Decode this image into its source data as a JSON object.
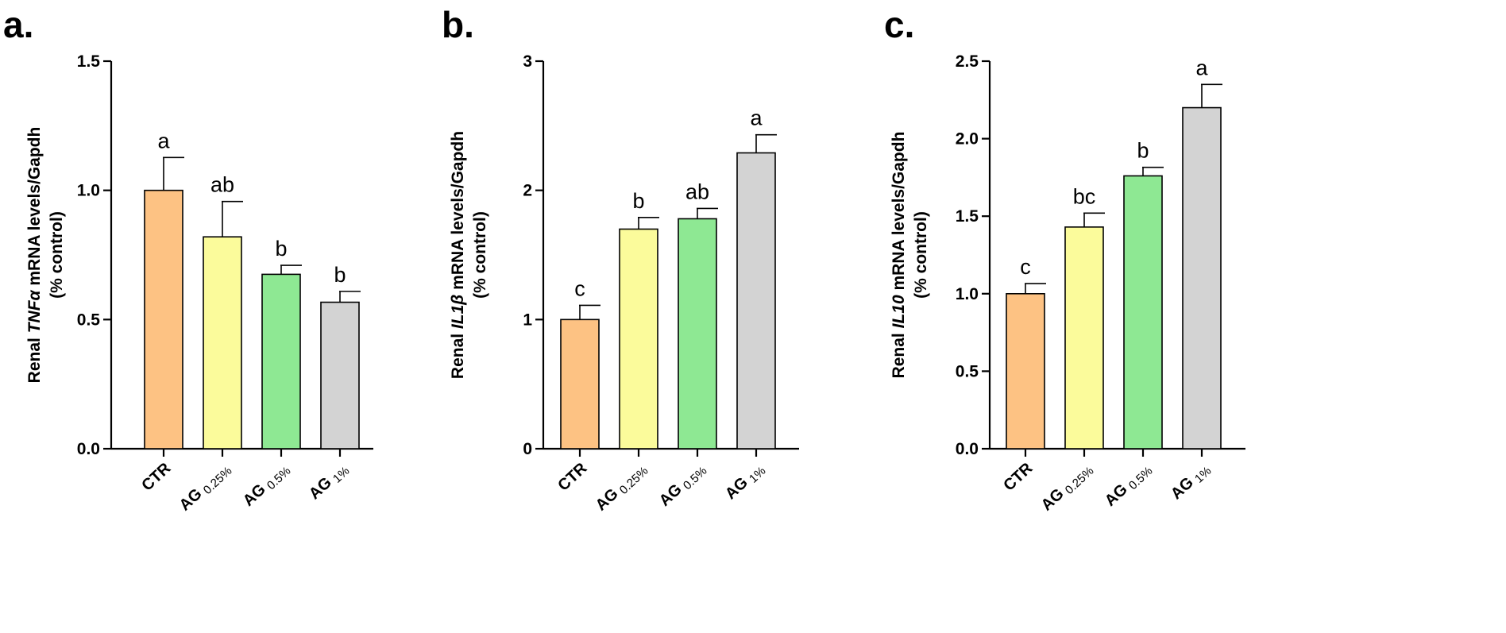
{
  "chart_data": [
    {
      "type": "bar",
      "panel": "a.",
      "ylabel_parts": [
        "Renal ",
        "TNFα",
        " mRNA levels/Gapdh"
      ],
      "ylabel_line2": "(% control)",
      "ylim": [
        0,
        1.5
      ],
      "yticks": [
        "0.0",
        "0.5",
        "1.0",
        "1.5"
      ],
      "categories": [
        {
          "main": "CTR",
          "sub": ""
        },
        {
          "main": "AG",
          "sub": "0.25%"
        },
        {
          "main": "AG",
          "sub": "0.5%"
        },
        {
          "main": "AG",
          "sub": "1%"
        }
      ],
      "values": [
        1.0,
        0.82,
        0.675,
        0.567
      ],
      "errors": [
        0.127,
        0.137,
        0.035,
        0.042
      ],
      "significance": [
        "a",
        "ab",
        "b",
        "b"
      ],
      "colors": [
        "#fdc283",
        "#fbfb9b",
        "#8ee893",
        "#d3d3d3"
      ]
    },
    {
      "type": "bar",
      "panel": "b.",
      "ylabel_parts": [
        "Renal ",
        "IL1β",
        " mRNA levels/Gapdh"
      ],
      "ylabel_line2": "(% control)",
      "ylim": [
        0,
        3
      ],
      "yticks": [
        "0",
        "1",
        "2",
        "3"
      ],
      "categories": [
        {
          "main": "CTR",
          "sub": ""
        },
        {
          "main": "AG",
          "sub": "0.25%"
        },
        {
          "main": "AG",
          "sub": "0.5%"
        },
        {
          "main": "AG",
          "sub": "1%"
        }
      ],
      "values": [
        1.0,
        1.7,
        1.78,
        2.29
      ],
      "errors": [
        0.11,
        0.09,
        0.08,
        0.14
      ],
      "significance": [
        "c",
        "b",
        "ab",
        "a"
      ],
      "colors": [
        "#fdc283",
        "#fbfb9b",
        "#8ee893",
        "#d3d3d3"
      ]
    },
    {
      "type": "bar",
      "panel": "c.",
      "ylabel_parts": [
        "Renal ",
        "IL10",
        " mRNA levels/Gapdh"
      ],
      "ylabel_line2": "(% control)",
      "ylim": [
        0,
        2.5
      ],
      "yticks": [
        "0.0",
        "0.5",
        "1.0",
        "1.5",
        "2.0",
        "2.5"
      ],
      "categories": [
        {
          "main": "CTR",
          "sub": ""
        },
        {
          "main": "AG",
          "sub": "0.25%"
        },
        {
          "main": "AG",
          "sub": "0.5%"
        },
        {
          "main": "AG",
          "sub": "1%"
        }
      ],
      "values": [
        1.0,
        1.43,
        1.76,
        2.2
      ],
      "errors": [
        0.065,
        0.09,
        0.055,
        0.15
      ],
      "significance": [
        "c",
        "bc",
        "b",
        "a"
      ],
      "colors": [
        "#fdc283",
        "#fbfb9b",
        "#8ee893",
        "#d3d3d3"
      ]
    }
  ]
}
